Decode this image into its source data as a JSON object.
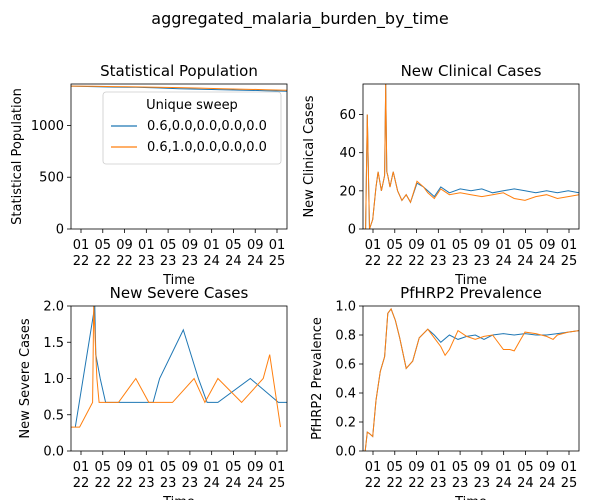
{
  "figure": {
    "suptitle": "aggregated_malaria_burden_by_time"
  },
  "chart_data": [
    {
      "type": "line",
      "title": "Statistical Population",
      "xlabel": "Time",
      "ylabel": "Statistical Population",
      "ylim": [
        0,
        1400
      ],
      "xlim": [
        0,
        1
      ],
      "yticks": [
        0,
        500,
        1000
      ],
      "xtick_labels": [
        "01\n22",
        "05\n22",
        "09\n22",
        "01\n23",
        "05\n23",
        "09\n23",
        "01\n24",
        "05\n24",
        "09\n24",
        "01\n25"
      ],
      "grid": false,
      "legend": {
        "title": "Unique sweep",
        "placement": "upper-right"
      },
      "series": [
        {
          "name": "0.6,0.0,0.0,0.0,0.0",
          "color": "#1f77b4",
          "x": [
            0,
            0.1,
            0.2,
            0.3,
            0.4,
            0.5,
            0.6,
            0.7,
            0.8,
            0.9,
            1.0
          ],
          "values": [
            1380,
            1375,
            1370,
            1368,
            1362,
            1355,
            1350,
            1345,
            1340,
            1335,
            1330
          ]
        },
        {
          "name": "0.6,1.0,0.0,0.0,0.0",
          "color": "#ff7f0e",
          "x": [
            0,
            0.1,
            0.2,
            0.3,
            0.4,
            0.5,
            0.6,
            0.7,
            0.8,
            0.9,
            1.0
          ],
          "values": [
            1380,
            1378,
            1375,
            1372,
            1368,
            1365,
            1360,
            1355,
            1350,
            1345,
            1340
          ]
        }
      ]
    },
    {
      "type": "line",
      "title": "New Clinical Cases",
      "xlabel": "Time",
      "ylabel": "New Clinical Cases",
      "ylim": [
        0,
        76
      ],
      "xlim": [
        0,
        1
      ],
      "yticks": [
        0,
        20,
        40,
        60
      ],
      "xtick_labels": [
        "01\n22",
        "05\n22",
        "09\n22",
        "01\n23",
        "05\n23",
        "09\n23",
        "01\n24",
        "05\n24",
        "09\n24",
        "01\n25"
      ],
      "grid": false,
      "series": [
        {
          "name": "0.6,0.0,0.0,0.0,0.0",
          "color": "#1f77b4",
          "x": [
            0,
            0.012,
            0.02,
            0.03,
            0.045,
            0.06,
            0.07,
            0.085,
            0.1,
            0.105,
            0.11,
            0.115,
            0.125,
            0.14,
            0.16,
            0.18,
            0.2,
            0.22,
            0.25,
            0.28,
            0.3,
            0.33,
            0.36,
            0.4,
            0.45,
            0.5,
            0.55,
            0.6,
            0.65,
            0.7,
            0.75,
            0.8,
            0.85,
            0.9,
            0.95,
            1.0
          ],
          "values": [
            0,
            0,
            60,
            0,
            5,
            22,
            30,
            20,
            28,
            76,
            30,
            28,
            22,
            30,
            20,
            15,
            18,
            14,
            24,
            22,
            20,
            17,
            22,
            19,
            21,
            20,
            21,
            19,
            20,
            21,
            20,
            19,
            20,
            19,
            20,
            19
          ]
        },
        {
          "name": "0.6,1.0,0.0,0.0,0.0",
          "color": "#ff7f0e",
          "x": [
            0,
            0.012,
            0.02,
            0.03,
            0.045,
            0.06,
            0.07,
            0.085,
            0.1,
            0.105,
            0.11,
            0.115,
            0.125,
            0.14,
            0.16,
            0.18,
            0.2,
            0.22,
            0.25,
            0.28,
            0.3,
            0.33,
            0.36,
            0.4,
            0.45,
            0.5,
            0.55,
            0.6,
            0.65,
            0.7,
            0.75,
            0.8,
            0.85,
            0.9,
            0.95,
            1.0
          ],
          "values": [
            0,
            0,
            60,
            0,
            5,
            22,
            30,
            20,
            28,
            76,
            30,
            28,
            22,
            30,
            20,
            15,
            18,
            14,
            25,
            22,
            19,
            16,
            21,
            18,
            19,
            18,
            17,
            18,
            19,
            16,
            15,
            17,
            18,
            16,
            17,
            18
          ]
        }
      ]
    },
    {
      "type": "line",
      "title": "New Severe Cases",
      "xlabel": "Time",
      "ylabel": "New Severe Cases",
      "ylim": [
        0,
        2.0
      ],
      "xlim": [
        0,
        1
      ],
      "yticks": [
        0.0,
        0.5,
        1.0,
        1.5,
        2.0
      ],
      "xtick_labels": [
        "01\n22",
        "05\n22",
        "09\n22",
        "01\n23",
        "05\n23",
        "09\n23",
        "01\n24",
        "05\n24",
        "09\n24",
        "01\n25"
      ],
      "grid": false,
      "series": [
        {
          "name": "0.6,0.0,0.0,0.0,0.0",
          "color": "#1f77b4",
          "x": [
            0.02,
            0.11,
            0.115,
            0.135,
            0.16,
            0.19,
            0.25,
            0.33,
            0.38,
            0.41,
            0.52,
            0.59,
            0.63,
            0.68,
            0.83,
            0.96,
            1.0
          ],
          "values": [
            0.33,
            2.0,
            1.33,
            1.0,
            0.67,
            0.67,
            0.67,
            0.67,
            0.67,
            1.0,
            1.67,
            1.0,
            0.67,
            0.67,
            1.0,
            0.67,
            0.67
          ]
        },
        {
          "name": "0.6,1.0,0.0,0.0,0.0",
          "color": "#ff7f0e",
          "x": [
            0.0,
            0.04,
            0.1,
            0.105,
            0.11,
            0.115,
            0.12,
            0.13,
            0.15,
            0.2,
            0.22,
            0.3,
            0.36,
            0.44,
            0.47,
            0.57,
            0.62,
            0.68,
            0.79,
            0.89,
            0.92,
            0.97
          ],
          "values": [
            0.33,
            0.33,
            0.67,
            2.0,
            1.67,
            1.33,
            1.0,
            0.67,
            0.67,
            0.67,
            0.67,
            1.0,
            0.67,
            0.67,
            0.67,
            1.0,
            0.67,
            1.0,
            0.67,
            1.0,
            1.33,
            0.33
          ]
        }
      ]
    },
    {
      "type": "line",
      "title": "PfHRP2 Prevalence",
      "xlabel": "Time",
      "ylabel": "PfHRP2 Prevalence",
      "ylim": [
        0,
        1.0
      ],
      "xlim": [
        0,
        1
      ],
      "yticks": [
        0.0,
        0.2,
        0.4,
        0.6,
        0.8,
        1.0
      ],
      "xtick_labels": [
        "01\n22",
        "05\n22",
        "09\n22",
        "01\n23",
        "05\n23",
        "09\n23",
        "01\n24",
        "05\n24",
        "09\n24",
        "01\n25"
      ],
      "grid": false,
      "series": [
        {
          "name": "0.6,0.0,0.0,0.0,0.0",
          "color": "#1f77b4",
          "x": [
            0,
            0.01,
            0.02,
            0.03,
            0.045,
            0.06,
            0.08,
            0.1,
            0.115,
            0.13,
            0.15,
            0.17,
            0.2,
            0.23,
            0.26,
            0.3,
            0.33,
            0.36,
            0.4,
            0.44,
            0.48,
            0.52,
            0.56,
            0.6,
            0.65,
            0.7,
            0.75,
            0.8,
            0.85,
            0.9,
            0.95,
            1.0
          ],
          "values": [
            0,
            0,
            0.13,
            0.12,
            0.1,
            0.35,
            0.55,
            0.65,
            0.95,
            0.98,
            0.9,
            0.78,
            0.57,
            0.62,
            0.78,
            0.84,
            0.8,
            0.75,
            0.8,
            0.77,
            0.79,
            0.8,
            0.77,
            0.8,
            0.81,
            0.8,
            0.81,
            0.8,
            0.8,
            0.81,
            0.82,
            0.83
          ]
        },
        {
          "name": "0.6,1.0,0.0,0.0,0.0",
          "color": "#ff7f0e",
          "x": [
            0,
            0.01,
            0.02,
            0.03,
            0.045,
            0.06,
            0.08,
            0.1,
            0.115,
            0.13,
            0.15,
            0.17,
            0.2,
            0.23,
            0.26,
            0.3,
            0.33,
            0.36,
            0.38,
            0.4,
            0.44,
            0.48,
            0.52,
            0.56,
            0.6,
            0.65,
            0.68,
            0.7,
            0.73,
            0.75,
            0.8,
            0.85,
            0.88,
            0.9,
            0.95,
            1.0
          ],
          "values": [
            0,
            0,
            0.13,
            0.12,
            0.1,
            0.35,
            0.55,
            0.65,
            0.95,
            0.98,
            0.9,
            0.78,
            0.57,
            0.62,
            0.78,
            0.84,
            0.78,
            0.72,
            0.66,
            0.7,
            0.83,
            0.79,
            0.77,
            0.79,
            0.8,
            0.7,
            0.7,
            0.69,
            0.77,
            0.82,
            0.81,
            0.79,
            0.77,
            0.8,
            0.82,
            0.83
          ]
        }
      ]
    }
  ]
}
